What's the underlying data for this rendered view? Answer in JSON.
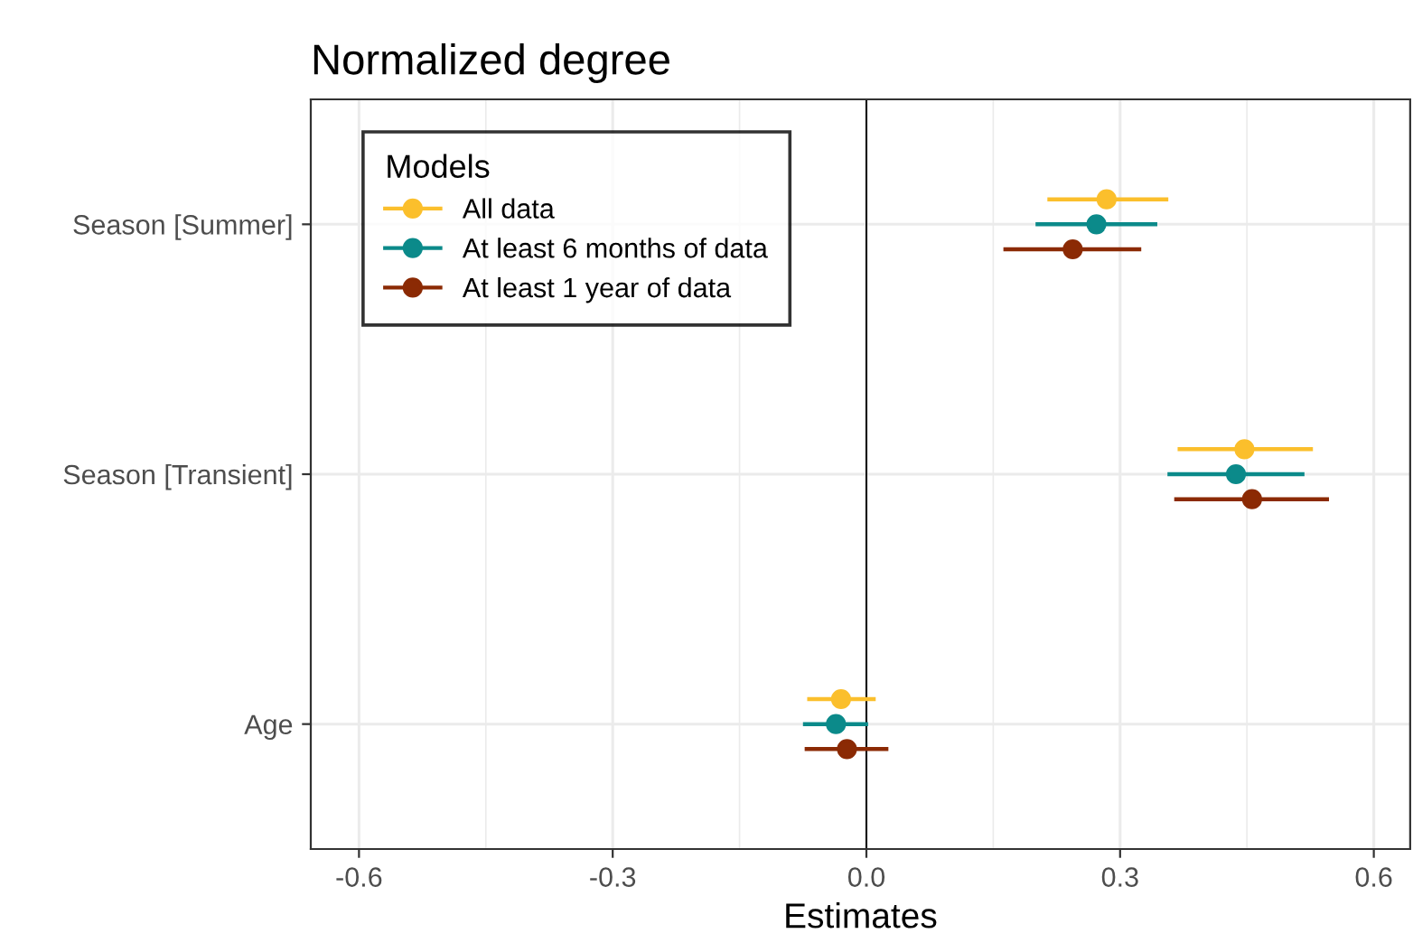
{
  "chart_data": {
    "type": "scatter",
    "orientation": "horizontal",
    "title": "Normalized degree",
    "xlabel": "Estimates",
    "legend_title": "Models",
    "categories": [
      "Season [Summer]",
      "Season [Transient]",
      "Age"
    ],
    "series": [
      {
        "name": "All data",
        "color": "#fbbf2c",
        "values": [
          0.284,
          0.447,
          -0.03
        ],
        "errors": [
          [
            0.214,
            0.357
          ],
          [
            0.368,
            0.528
          ],
          [
            -0.07,
            0.011
          ]
        ]
      },
      {
        "name": "At least 6 months of data",
        "color": "#0b8a8a",
        "values": [
          0.272,
          0.437,
          -0.036
        ],
        "errors": [
          [
            0.2,
            0.344
          ],
          [
            0.356,
            0.518
          ],
          [
            -0.075,
            0.002
          ]
        ]
      },
      {
        "name": "At least 1 year of data",
        "color": "#8b2a04",
        "values": [
          0.244,
          0.456,
          -0.023
        ],
        "errors": [
          [
            0.162,
            0.325
          ],
          [
            0.364,
            0.547
          ],
          [
            -0.073,
            0.026
          ]
        ]
      }
    ],
    "xlim": [
      -0.657,
      0.643
    ],
    "xticks": [
      {
        "value": -0.6,
        "label": "-0.6"
      },
      {
        "value": -0.3,
        "label": "-0.3"
      },
      {
        "value": 0.0,
        "label": "0.0"
      },
      {
        "value": 0.3,
        "label": "0.3"
      },
      {
        "value": 0.6,
        "label": "0.6"
      }
    ],
    "ref_lines": [
      {
        "axis": "x",
        "value": 0,
        "label": null,
        "color": "#000000"
      }
    ],
    "grid": true,
    "legend": "top left",
    "marker": "circle",
    "line_style": "solid"
  }
}
